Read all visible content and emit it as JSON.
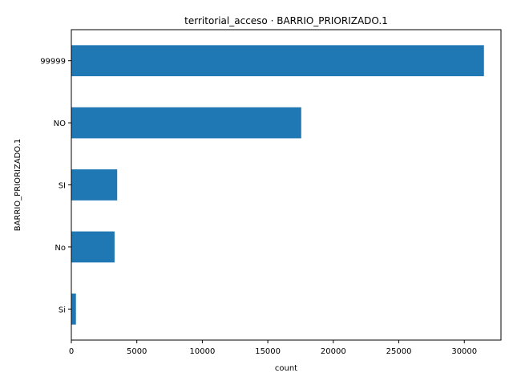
{
  "chart_data": {
    "type": "bar",
    "orientation": "horizontal",
    "title": "territorial_acceso · BARRIO_PRIORIZADO.1",
    "xlabel": "count",
    "ylabel": "BARRIO_PRIORIZADO.1",
    "categories": [
      "99999",
      "NO",
      "SI",
      "No",
      "Si"
    ],
    "values": [
      31500,
      17550,
      3500,
      3300,
      350
    ],
    "xlim": [
      0,
      32800
    ],
    "xticks": [
      0,
      5000,
      10000,
      15000,
      20000,
      25000,
      30000
    ],
    "xtick_labels": [
      "0",
      "5000",
      "10000",
      "15000",
      "20000",
      "25000",
      "30000"
    ],
    "bar_color": "#1f77b4",
    "grid": false,
    "legend": "none"
  }
}
